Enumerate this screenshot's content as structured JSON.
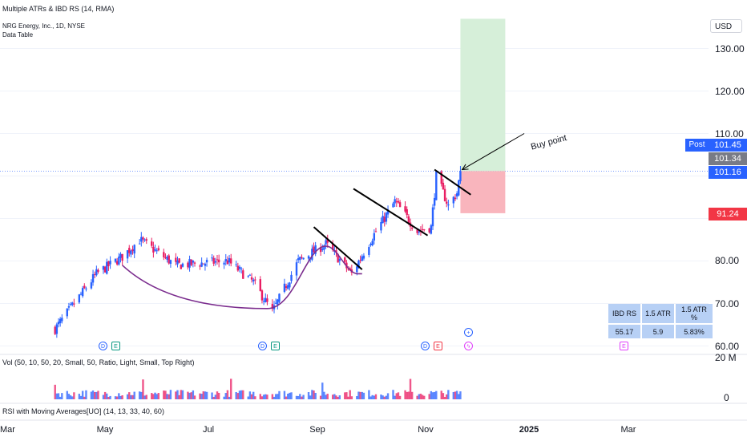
{
  "header": {
    "indicator_title": "Multiple ATRs & IBD RS (14, RMA)",
    "symbol_line": "NRG Energy, Inc., 1D, NYSE",
    "data_table_label": "Data Table"
  },
  "price_scale": {
    "currency": "USD",
    "post_label": "Post",
    "post_price": "101.45",
    "last_price": "101.34",
    "current_price": "101.16",
    "stop_price": "91.24"
  },
  "annotation": {
    "buy_point": "Buy point"
  },
  "ibd_table": {
    "headers": [
      "IBD RS",
      "1.5 ATR",
      "1.5 ATR %"
    ],
    "values": [
      "55.17",
      "5.9",
      "5.83%"
    ]
  },
  "volume_pane": {
    "label": "Vol (50, 10, 50, 20, Small, 50, Ratio, Light, Small, Top Right)",
    "ticks": [
      "20 M",
      "0"
    ]
  },
  "rsi_pane": {
    "label": "RSI with Moving Averages[UO] (14, 13, 33, 40, 60)"
  },
  "events": {
    "dividend": "D",
    "earnings": "E"
  },
  "colors": {
    "up": "#2962ff",
    "down": "#e91e63",
    "cup": "#7b2d8e",
    "profit_zone": "#d6efd9",
    "loss_zone": "#f9b5bd",
    "price_tag": "#2962ff",
    "stop_tag": "#f23645",
    "last_tag": "#787b86"
  },
  "chart_data": {
    "type": "candlestick",
    "symbol": "NRG",
    "interval": "1D",
    "y_ticks": [
      60,
      70,
      80,
      90,
      100,
      110,
      120,
      130
    ],
    "y_tick_labels": [
      "60.00",
      "70.00",
      "80.00",
      "",
      "",
      "110.00",
      "120.00",
      "130.00"
    ],
    "ylim": [
      58.5,
      137
    ],
    "x_ticks": [
      "Mar",
      "May",
      "Jul",
      "Sep",
      "Nov",
      "2025",
      "Mar"
    ],
    "anchors": [
      {
        "date": "2024-04-01",
        "close": 64
      },
      {
        "date": "2024-04-25",
        "close": 77
      },
      {
        "date": "2024-05-10",
        "close": 81
      },
      {
        "date": "2024-05-20",
        "close": 85
      },
      {
        "date": "2024-06-10",
        "close": 79
      },
      {
        "date": "2024-07-10",
        "close": 80
      },
      {
        "date": "2024-07-25",
        "close": 75
      },
      {
        "date": "2024-08-05",
        "close": 68
      },
      {
        "date": "2024-08-20",
        "close": 80
      },
      {
        "date": "2024-09-05",
        "close": 84
      },
      {
        "date": "2024-09-20",
        "close": 77
      },
      {
        "date": "2024-10-01",
        "close": 85
      },
      {
        "date": "2024-10-15",
        "close": 94
      },
      {
        "date": "2024-10-28",
        "close": 87
      },
      {
        "date": "2024-11-05",
        "close": 88
      },
      {
        "date": "2024-11-08",
        "close": 100
      },
      {
        "date": "2024-11-15",
        "close": 93
      },
      {
        "date": "2024-11-20",
        "close": 96
      },
      {
        "date": "2024-11-22",
        "close": 101.16
      }
    ],
    "trendlines": [
      {
        "from": {
          "date": "2024-08-29",
          "price": 88
        },
        "to": {
          "date": "2024-09-26",
          "price": 78
        }
      },
      {
        "from": {
          "date": "2024-09-21",
          "price": 97
        },
        "to": {
          "date": "2024-11-03",
          "price": 86
        }
      },
      {
        "from": {
          "date": "2024-11-07",
          "price": 101.5
        },
        "to": {
          "date": "2024-11-28",
          "price": 95.6
        }
      }
    ],
    "cup_curve": {
      "start": "2024-05-10",
      "bottom": "2024-08-02",
      "handle_end": "2024-09-26",
      "low": 68.8,
      "lip": 83.5,
      "handle": 77
    },
    "trade_box": {
      "from": "2024-11-22",
      "to": "2024-12-18",
      "entry": 101.16,
      "stop": 91.24,
      "target": 137
    },
    "buy_arrow": {
      "from": {
        "date": "2024-12-29",
        "price": 110
      },
      "to": {
        "date": "2024-11-23",
        "price": 101.5
      }
    },
    "earnings_dates": [
      "2024-05-08",
      "2024-08-08",
      "2024-11-08",
      "2025-02-26"
    ],
    "dividend_dates": [
      "2024-05-01",
      "2024-08-01",
      "2024-11-01"
    ]
  }
}
